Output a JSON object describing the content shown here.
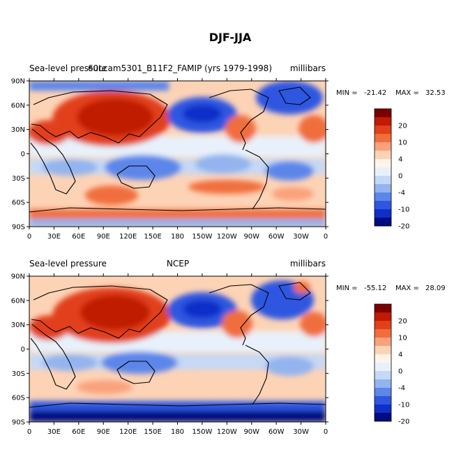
{
  "figure": {
    "title": "DJF-JJA"
  },
  "lat_labels": [
    "90N",
    "60N",
    "30N",
    "0",
    "30S",
    "60S",
    "90S"
  ],
  "lon_labels": [
    "0",
    "30E",
    "60E",
    "90E",
    "120E",
    "150E",
    "180",
    "150W",
    "120W",
    "90W",
    "60W",
    "30W",
    "0"
  ],
  "colorbar_labels": [
    "20",
    "10",
    "4",
    "0",
    "-4",
    "-10",
    "-20"
  ],
  "colorbar_colors": [
    "#7a0000",
    "#c01a00",
    "#e2401a",
    "#f06e3c",
    "#f9a27c",
    "#fdd3b6",
    "#fff4ea",
    "#e8f1fb",
    "#c5d8f5",
    "#93b4ef",
    "#5c86ea",
    "#2f56e0",
    "#0f2fc8",
    "#000c80"
  ],
  "panels": [
    {
      "left_title": "Sea-level pressure",
      "center_title": "60Lcam5301_B11F2_FAMIP (yrs 1979-1998)",
      "units": "millibars",
      "min_label": "MIN =",
      "min_value": "-21.42",
      "max_label": "MAX =",
      "max_value": "32.53"
    },
    {
      "left_title": "Sea-level pressure",
      "center_title": "NCEP",
      "units": "millibars",
      "min_label": "MIN =",
      "min_value": "-55.12",
      "max_label": "MAX =",
      "max_value": "28.09"
    }
  ]
}
